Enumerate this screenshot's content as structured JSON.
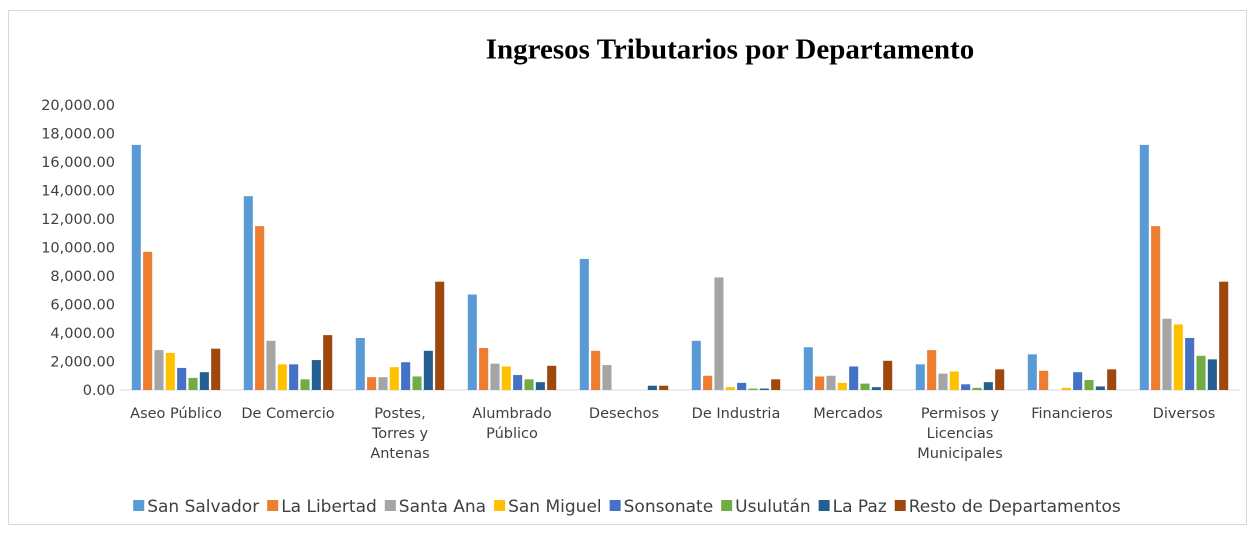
{
  "chart_data": {
    "type": "bar",
    "title": "Ingresos Tributarios por Departamento",
    "categories": [
      "Aseo Público",
      "De Comercio",
      "Postes, Torres y Antenas",
      "Alumbrado Público",
      "Desechos",
      "De Industria",
      "Mercados",
      "Permisos y Licencias Municipales",
      "Financieros",
      "Diversos"
    ],
    "series": [
      {
        "name": "San Salvador",
        "color": "#5b9bd5",
        "values": [
          17200,
          13600,
          3650,
          6700,
          9200,
          3450,
          3000,
          1800,
          2500,
          17200
        ]
      },
      {
        "name": "La Libertad",
        "color": "#ed7d31",
        "values": [
          9700,
          11500,
          900,
          2950,
          2750,
          1000,
          950,
          2800,
          1350,
          11500
        ]
      },
      {
        "name": "Santa Ana",
        "color": "#a5a5a5",
        "values": [
          2800,
          3450,
          900,
          1850,
          1750,
          7900,
          1000,
          1150,
          0,
          5000
        ]
      },
      {
        "name": "San Miguel",
        "color": "#ffc000",
        "values": [
          2600,
          1800,
          1600,
          1650,
          0,
          200,
          500,
          1300,
          150,
          4600
        ]
      },
      {
        "name": "Sonsonate",
        "color": "#4472c4",
        "values": [
          1550,
          1800,
          1950,
          1050,
          0,
          500,
          1650,
          400,
          1250,
          3650
        ]
      },
      {
        "name": "Usulután",
        "color": "#70ad47",
        "values": [
          850,
          750,
          950,
          750,
          0,
          100,
          450,
          150,
          700,
          2400
        ]
      },
      {
        "name": "La Paz",
        "color": "#255e91",
        "values": [
          1250,
          2100,
          2750,
          550,
          300,
          100,
          200,
          550,
          250,
          2150
        ]
      },
      {
        "name": "Resto de Departamentos",
        "color": "#9e480e",
        "values": [
          2900,
          3850,
          7600,
          1700,
          300,
          750,
          2050,
          1450,
          1450,
          7600
        ]
      }
    ],
    "ylim": [
      0,
      20000
    ],
    "yticks": [
      {
        "value": 0,
        "label": "0.00"
      },
      {
        "value": 2000,
        "label": "2,000.00"
      },
      {
        "value": 4000,
        "label": "4,000.00"
      },
      {
        "value": 6000,
        "label": "6,000.00"
      },
      {
        "value": 8000,
        "label": "8,000.00"
      },
      {
        "value": 10000,
        "label": "10,000.00"
      },
      {
        "value": 12000,
        "label": "12,000.00"
      },
      {
        "value": 14000,
        "label": "14,000.00"
      },
      {
        "value": 16000,
        "label": "16,000.00"
      },
      {
        "value": 18000,
        "label": "18,000.00"
      },
      {
        "value": 20000,
        "label": "20,000.00"
      }
    ],
    "grid": false,
    "legend": "bottom"
  }
}
